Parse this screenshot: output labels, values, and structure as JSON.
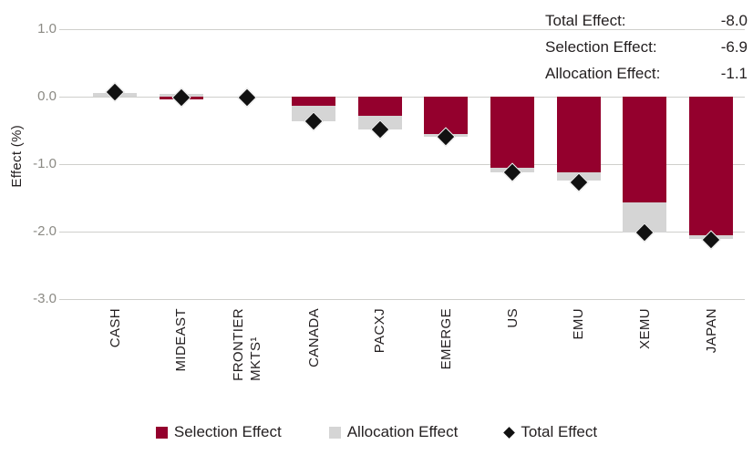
{
  "chart_data": {
    "type": "bar",
    "stacked": true,
    "grid": true,
    "legend_position": "bottom",
    "ylabel": "Effect (%)",
    "ylim": [
      -3.0,
      1.0
    ],
    "yticks": [
      {
        "label": "1.0",
        "value": 1.0
      },
      {
        "label": "0.0",
        "value": 0.0
      },
      {
        "label": "-1.0",
        "value": -1.0
      },
      {
        "label": "-2.0",
        "value": -2.0
      },
      {
        "label": "-3.0",
        "value": -3.0
      }
    ],
    "categories": [
      "CASH",
      "MIDEAST",
      "FRONTIER MKTS¹",
      "CANADA",
      "PACXJ",
      "EMERGE",
      "US",
      "EMU",
      "XEMU",
      "JAPAN"
    ],
    "category_label_lines": [
      [
        "CASH"
      ],
      [
        "MIDEAST"
      ],
      [
        "FRONTIER",
        "MKTS¹"
      ],
      [
        "CANADA"
      ],
      [
        "PACXJ"
      ],
      [
        "EMERGE"
      ],
      [
        "US"
      ],
      [
        "EMU"
      ],
      [
        "XEMU"
      ],
      [
        "JAPAN"
      ]
    ],
    "series": [
      {
        "name": "Selection Effect",
        "type": "bar",
        "color": "#94002D",
        "values": [
          0.0,
          -0.04,
          0.0,
          -0.14,
          -0.28,
          -0.55,
          -1.06,
          -1.12,
          -1.57,
          -2.06
        ]
      },
      {
        "name": "Allocation Effect",
        "type": "bar",
        "color": "#D5D5D5",
        "values": [
          0.06,
          0.04,
          0.0,
          -0.22,
          -0.2,
          -0.05,
          -0.06,
          -0.13,
          -0.45,
          -0.05
        ]
      },
      {
        "name": "Total Effect",
        "type": "scatter",
        "marker": "diamond",
        "color": "#111111",
        "values": [
          0.07,
          -0.01,
          -0.02,
          -0.36,
          -0.48,
          -0.6,
          -1.12,
          -1.27,
          -2.02,
          -2.12
        ]
      }
    ]
  },
  "summary": {
    "rows": [
      {
        "label": "Total Effect:",
        "value": "-8.0"
      },
      {
        "label": "Selection Effect:",
        "value": "-6.9"
      },
      {
        "label": "Allocation Effect:",
        "value": "-1.1"
      }
    ]
  },
  "legend": {
    "items": [
      {
        "label": "Selection Effect",
        "swatch": "square",
        "color": "#94002D"
      },
      {
        "label": "Allocation Effect",
        "swatch": "square",
        "color": "#D5D5D5"
      },
      {
        "label": "Total Effect",
        "swatch": "diamond",
        "color": "#111111"
      }
    ]
  },
  "colors": {
    "selection": "#94002D",
    "allocation": "#D5D5D5",
    "total_marker": "#111111",
    "gridline": "#CFCFCC",
    "tick_text": "#8B8A84",
    "text": "#231F20",
    "background": "#FFFFFF"
  }
}
